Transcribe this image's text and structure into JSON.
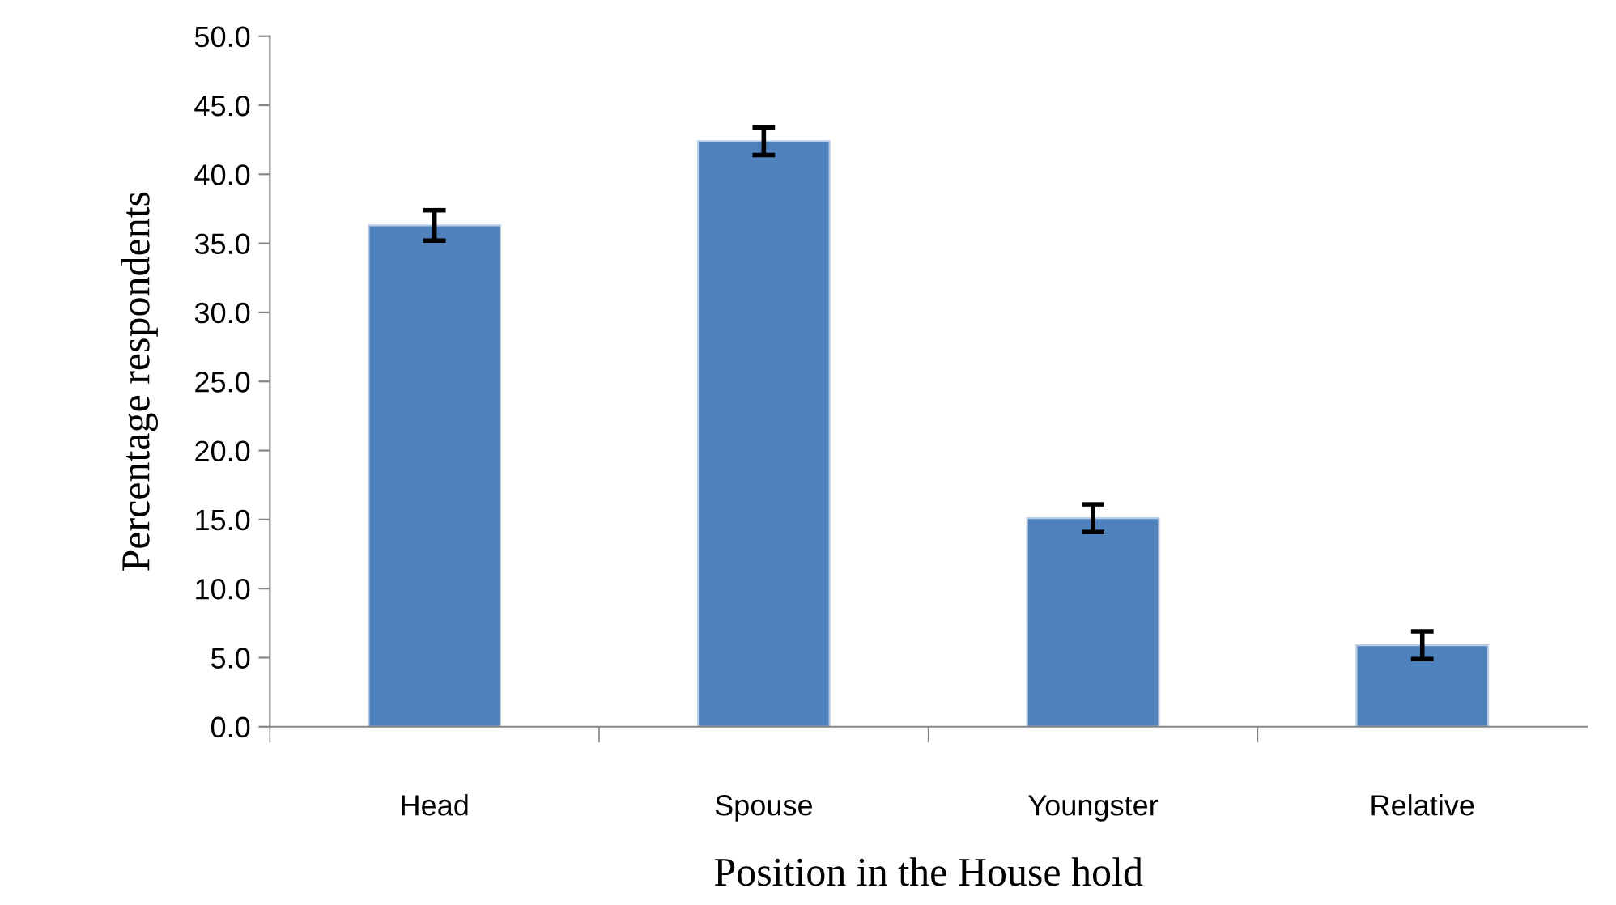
{
  "chart_data": {
    "type": "bar",
    "xlabel": "Position in the House hold",
    "ylabel": "Percentage respondents",
    "categories": [
      "Head",
      "Spouse",
      "Youngster",
      "Relative"
    ],
    "values": [
      36.3,
      42.4,
      15.1,
      5.9
    ],
    "errors": [
      1.1,
      1.0,
      1.0,
      1.0
    ],
    "color": "#4f81bd",
    "ylim": [
      0,
      50
    ],
    "yticks": [
      {
        "value": 0,
        "label": "0.0"
      },
      {
        "value": 5,
        "label": "5.0"
      },
      {
        "value": 10,
        "label": "10.0"
      },
      {
        "value": 15,
        "label": "15.0"
      },
      {
        "value": 20,
        "label": "20.0"
      },
      {
        "value": 25,
        "label": "25.0"
      },
      {
        "value": 30,
        "label": "30.0"
      },
      {
        "value": 35,
        "label": "35.0"
      },
      {
        "value": 40,
        "label": "40.0"
      },
      {
        "value": 45,
        "label": "45.0"
      },
      {
        "value": 50,
        "label": "50.0"
      }
    ],
    "grid": false,
    "legend": false
  }
}
